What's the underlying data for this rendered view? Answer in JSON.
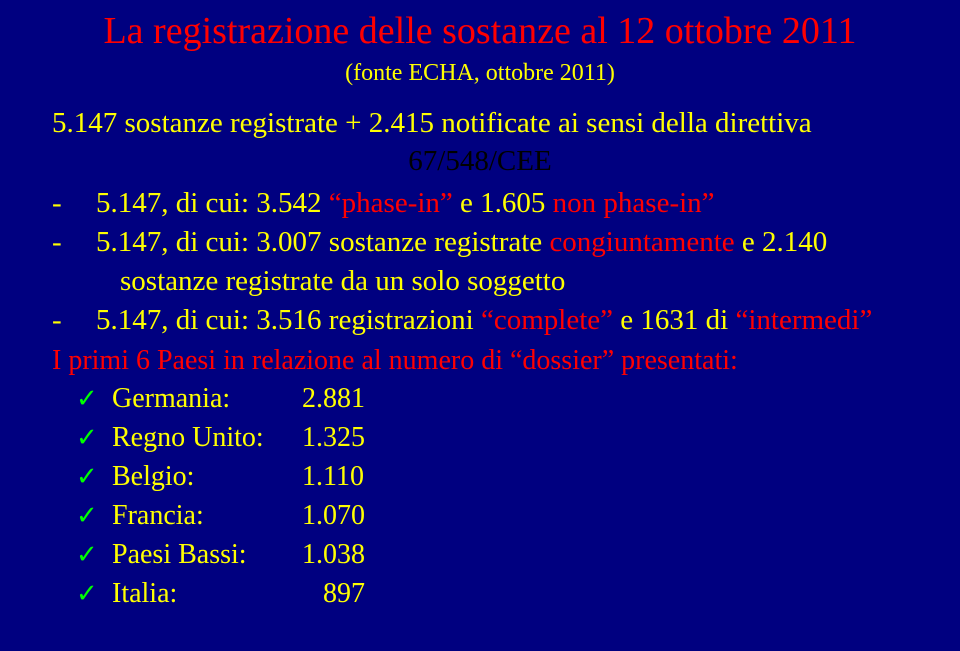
{
  "title": "La registrazione delle sostanze al 12 ottobre 2011",
  "subtitle": "(fonte ECHA, ottobre 2011)",
  "intro_line1": "5.147 sostanze  registrate + 2.415 notificate ai sensi della direttiva",
  "intro_line2": "67/548/CEE",
  "bullets": [
    {
      "prefix": "5.147, di cui: 3.542 ",
      "hl1": "“phase-in”",
      "mid": " e 1.605 ",
      "hl2": "non phase-in”",
      "tail": ""
    },
    {
      "prefix": "5.147, di cui: 3.007 sostanze registrate ",
      "hl1": "congiuntamente",
      "mid": " e 2.140",
      "cont": "sostanze registrate da un solo soggetto"
    },
    {
      "prefix": "5.147, di cui: 3.516  registrazioni ",
      "hl1": "“complete”",
      "mid": " e 1631 di ",
      "hl2": "“intermedi”",
      "tail": ""
    }
  ],
  "section2_title": "I primi 6 Paesi in relazione al numero di “dossier” presentati:",
  "countries": [
    {
      "label": "Germania:",
      "value": "2.881"
    },
    {
      "label": "Regno Unito:",
      "value": "1.325"
    },
    {
      "label": "Belgio:",
      "value": "1.110"
    },
    {
      "label": "Francia:",
      "value": "1.070"
    },
    {
      "label": "Paesi Bassi:",
      "value": "1.038"
    },
    {
      "label": "Italia:",
      "value": "   897"
    }
  ],
  "colors": {
    "background": "#000080",
    "title": "#ff0000",
    "body": "#ffff00",
    "highlight": "#ff0000",
    "tick": "#00ff00"
  }
}
